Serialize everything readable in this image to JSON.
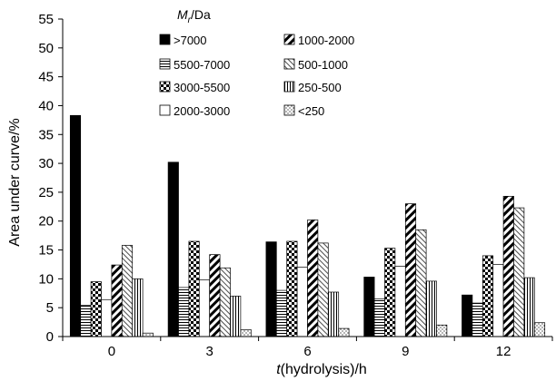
{
  "chart_data": {
    "type": "bar",
    "xlabel": "t(hydrolysis)/h",
    "ylabel": "Area under curve/%",
    "ylim": [
      0,
      55
    ],
    "yticks": [
      0,
      5,
      10,
      15,
      20,
      25,
      30,
      35,
      40,
      45,
      50,
      55
    ],
    "grid": false,
    "legend_title": "Mr/Da",
    "legend_title_main": "M",
    "legend_title_sub": "r",
    "legend_title_rest": "/Da",
    "legend_placement": "top",
    "categories": [
      "0",
      "3",
      "6",
      "9",
      "12"
    ],
    "series": [
      {
        "name": ">7000",
        "pattern": "solid-black",
        "values": [
          38.3,
          30.2,
          16.4,
          10.3,
          7.2
        ]
      },
      {
        "name": "5500-7000",
        "pattern": "horizontal-lines",
        "values": [
          5.4,
          8.5,
          8.0,
          6.5,
          5.8
        ]
      },
      {
        "name": "3000-5500",
        "pattern": "checker",
        "values": [
          9.5,
          16.5,
          16.5,
          15.3,
          14.0
        ]
      },
      {
        "name": "2000-3000",
        "pattern": "white",
        "values": [
          6.4,
          9.8,
          12.0,
          12.2,
          12.5
        ]
      },
      {
        "name": "1000-2000",
        "pattern": "wide-diagonal",
        "values": [
          12.4,
          14.2,
          20.2,
          23.0,
          24.3
        ]
      },
      {
        "name": "500-1000",
        "pattern": "thin-diagonal",
        "values": [
          15.8,
          11.9,
          16.2,
          18.5,
          22.3
        ]
      },
      {
        "name": "250-500",
        "pattern": "vertical-lines",
        "values": [
          10.0,
          7.0,
          7.7,
          9.6,
          10.2
        ]
      },
      {
        "name": "<250",
        "pattern": "dots",
        "values": [
          0.6,
          1.2,
          1.4,
          2.0,
          2.4
        ]
      }
    ]
  }
}
